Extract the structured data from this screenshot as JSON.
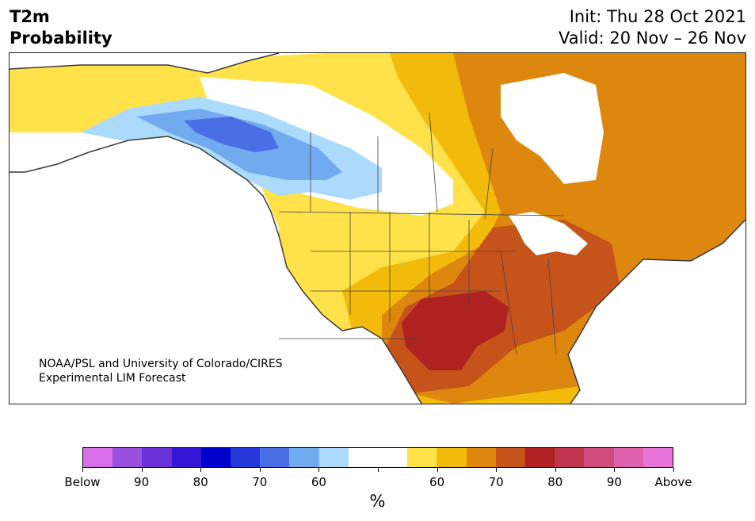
{
  "title": {
    "left_line1": "T2m",
    "left_line2": "Probability",
    "right_line1": "Init: Thu 28 Oct 2021",
    "right_line2": "Valid: 20 Nov – 26 Nov"
  },
  "credit": {
    "line1": "NOAA/PSL and University of Colorado/CIRES",
    "line2": "Experimental LIM Forecast"
  },
  "colorbar": {
    "colors": [
      "#d86fe8",
      "#9a50de",
      "#6a32d8",
      "#3515d6",
      "#0000cc",
      "#2438d9",
      "#4a6ee6",
      "#72aaef",
      "#acdafb",
      "#ffffff",
      "#ffffff",
      "#ffe24a",
      "#f2ba0b",
      "#de870f",
      "#c6531a",
      "#b02222",
      "#c2354f",
      "#d04c7e",
      "#de60ad",
      "#e874da"
    ],
    "labels": [
      "Below",
      "90",
      "80",
      "70",
      "60",
      "60",
      "70",
      "80",
      "90",
      "Above"
    ],
    "unit": "%"
  },
  "map": {
    "legend_meaning": "probability of below/above-normal 2m temperature",
    "region": "North America",
    "ocean_color": "#ffffff",
    "coast_color": "#3a3a3a"
  }
}
